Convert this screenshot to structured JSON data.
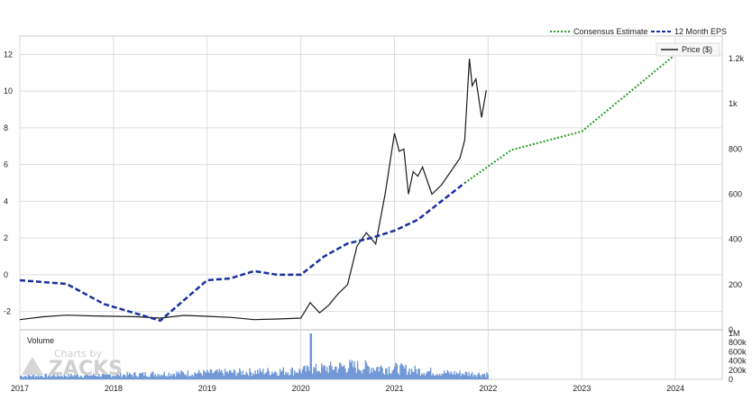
{
  "chart_data": {
    "type": "line",
    "legend": {
      "consensus_label": "Consensus Estimate",
      "eps_label": "12 Month EPS",
      "price_label": "Price ($)"
    },
    "x_ticks": [
      "2017",
      "2018",
      "2019",
      "2020",
      "2021",
      "2022",
      "2023",
      "2024"
    ],
    "y_left_ticks": [
      "-2",
      "0",
      "2",
      "4",
      "6",
      "8",
      "10",
      "12"
    ],
    "y_right_ticks": [
      "0",
      "200",
      "400",
      "600",
      "800",
      "1k",
      "1.2k"
    ],
    "volume_ticks": [
      "0",
      "200k",
      "400k",
      "600k",
      "800k",
      "1M"
    ],
    "volume_label": "Volume",
    "watermark": {
      "top": "Charts by",
      "brand": "ZACKS"
    },
    "colors": {
      "eps": "#1a2fa0",
      "consensus": "#2a9a2a",
      "price": "#1a1a1a",
      "volume": "#6f97d6",
      "grid": "#dddddd"
    },
    "eps_series": [
      {
        "x": 2017.0,
        "y": -0.3
      },
      {
        "x": 2017.5,
        "y": -0.5
      },
      {
        "x": 2017.9,
        "y": -1.6
      },
      {
        "x": 2018.5,
        "y": -2.5
      },
      {
        "x": 2019.0,
        "y": -0.3
      },
      {
        "x": 2019.25,
        "y": -0.2
      },
      {
        "x": 2019.5,
        "y": 0.2
      },
      {
        "x": 2019.75,
        "y": 0.0
      },
      {
        "x": 2020.0,
        "y": 0.0
      },
      {
        "x": 2020.25,
        "y": 1.0
      },
      {
        "x": 2020.5,
        "y": 1.7
      },
      {
        "x": 2020.75,
        "y": 2.0
      },
      {
        "x": 2021.0,
        "y": 2.4
      },
      {
        "x": 2021.25,
        "y": 3.0
      },
      {
        "x": 2021.5,
        "y": 4.0
      },
      {
        "x": 2021.75,
        "y": 5.0
      }
    ],
    "consensus_series": [
      {
        "x": 2021.75,
        "y": 5.0
      },
      {
        "x": 2022.25,
        "y": 6.8
      },
      {
        "x": 2023.0,
        "y": 7.8
      },
      {
        "x": 2024.0,
        "y": 12.0
      }
    ],
    "price_series": [
      {
        "x": 2017.0,
        "y": 45
      },
      {
        "x": 2017.25,
        "y": 58
      },
      {
        "x": 2017.5,
        "y": 65
      },
      {
        "x": 2017.75,
        "y": 62
      },
      {
        "x": 2018.0,
        "y": 60
      },
      {
        "x": 2018.25,
        "y": 58
      },
      {
        "x": 2018.5,
        "y": 52
      },
      {
        "x": 2018.75,
        "y": 64
      },
      {
        "x": 2019.0,
        "y": 60
      },
      {
        "x": 2019.25,
        "y": 55
      },
      {
        "x": 2019.5,
        "y": 45
      },
      {
        "x": 2019.75,
        "y": 48
      },
      {
        "x": 2020.0,
        "y": 52
      },
      {
        "x": 2020.1,
        "y": 120
      },
      {
        "x": 2020.2,
        "y": 75
      },
      {
        "x": 2020.3,
        "y": 110
      },
      {
        "x": 2020.4,
        "y": 160
      },
      {
        "x": 2020.5,
        "y": 200
      },
      {
        "x": 2020.6,
        "y": 370
      },
      {
        "x": 2020.7,
        "y": 430
      },
      {
        "x": 2020.8,
        "y": 380
      },
      {
        "x": 2020.9,
        "y": 600
      },
      {
        "x": 2021.0,
        "y": 870
      },
      {
        "x": 2021.05,
        "y": 790
      },
      {
        "x": 2021.1,
        "y": 800
      },
      {
        "x": 2021.15,
        "y": 600
      },
      {
        "x": 2021.2,
        "y": 700
      },
      {
        "x": 2021.25,
        "y": 680
      },
      {
        "x": 2021.3,
        "y": 720
      },
      {
        "x": 2021.4,
        "y": 600
      },
      {
        "x": 2021.5,
        "y": 640
      },
      {
        "x": 2021.6,
        "y": 700
      },
      {
        "x": 2021.7,
        "y": 760
      },
      {
        "x": 2021.75,
        "y": 840
      },
      {
        "x": 2021.8,
        "y": 1200
      },
      {
        "x": 2021.83,
        "y": 1080
      },
      {
        "x": 2021.87,
        "y": 1110
      },
      {
        "x": 2021.93,
        "y": 940
      },
      {
        "x": 2021.98,
        "y": 1060
      }
    ],
    "volume_series": [
      {
        "x": 2017.0,
        "v": 80000
      },
      {
        "x": 2017.5,
        "v": 90000
      },
      {
        "x": 2018.0,
        "v": 100000
      },
      {
        "x": 2018.5,
        "v": 130000
      },
      {
        "x": 2019.0,
        "v": 150000
      },
      {
        "x": 2019.5,
        "v": 170000
      },
      {
        "x": 2020.0,
        "v": 200000
      },
      {
        "x": 2020.5,
        "v": 300000
      },
      {
        "x": 2021.0,
        "v": 250000
      },
      {
        "x": 2021.5,
        "v": 150000
      },
      {
        "x": 2022.0,
        "v": 120000
      }
    ],
    "volume_peak": {
      "x": 2020.1,
      "v": 1000000
    },
    "x_range": [
      2017,
      2024.5
    ],
    "y_left_range": [
      -3,
      13
    ],
    "y_right_range": [
      0,
      1300
    ],
    "volume_range": [
      0,
      1000000
    ]
  }
}
